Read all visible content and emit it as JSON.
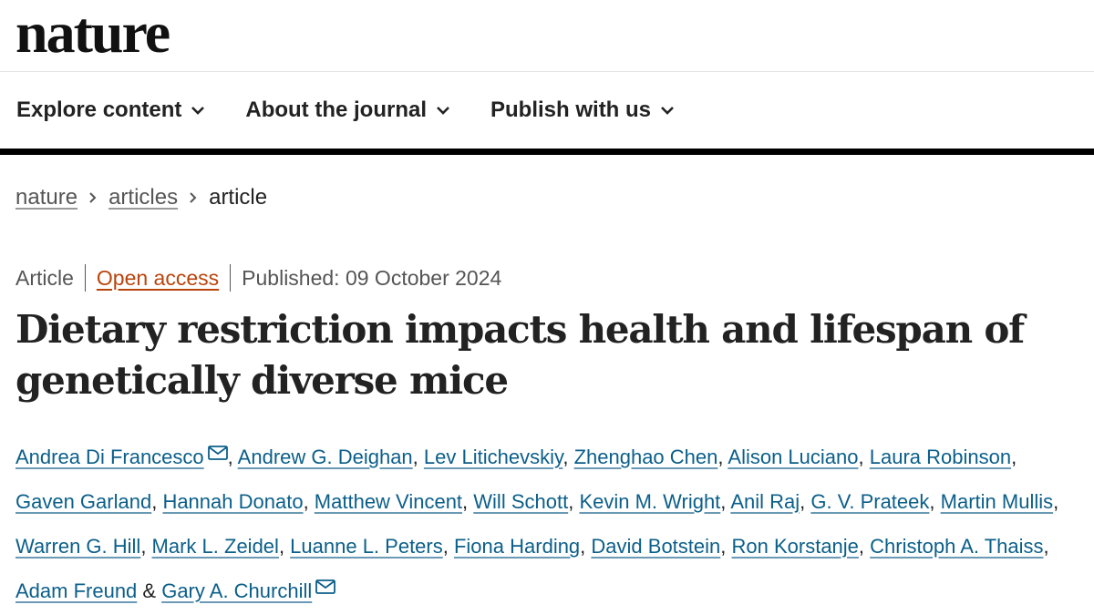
{
  "site": {
    "logo": "nature"
  },
  "nav": {
    "items": [
      {
        "label": "Explore content"
      },
      {
        "label": "About the journal"
      },
      {
        "label": "Publish with us"
      }
    ]
  },
  "breadcrumb": {
    "items": [
      "nature",
      "articles",
      "article"
    ]
  },
  "article": {
    "type": "Article",
    "access": "Open access",
    "published": "Published: 09 October 2024",
    "title": "Dietary restriction impacts health and lifespan of genetically diverse mice",
    "authors": [
      "Andrea Di Francesco",
      "Andrew G. Deighan",
      "Lev Litichevskiy",
      "Zhenghao Chen",
      "Alison Luciano",
      "Laura Robinson",
      "Gaven Garland",
      "Hannah Donato",
      "Matthew Vincent",
      "Will Schott",
      "Kevin M. Wright",
      "Anil Raj",
      "G. V. Prateek",
      "Martin Mullis",
      "Warren G. Hill",
      "Mark L. Zeidel",
      "Luanne L. Peters",
      "Fiona Harding",
      "David Botstein",
      "Ron Korstanje",
      "Christoph A. Thaiss",
      "Adam Freund",
      "Gary A. Churchill"
    ],
    "separator": ", ",
    "last_separator": " & "
  },
  "colors": {
    "link": "#0b5f8a",
    "open_access": "#b9440c"
  },
  "icons": {
    "nav_chevron": "chevron-down-icon",
    "crumb_sep": "chevron-right-icon",
    "contact": "mail-icon"
  }
}
